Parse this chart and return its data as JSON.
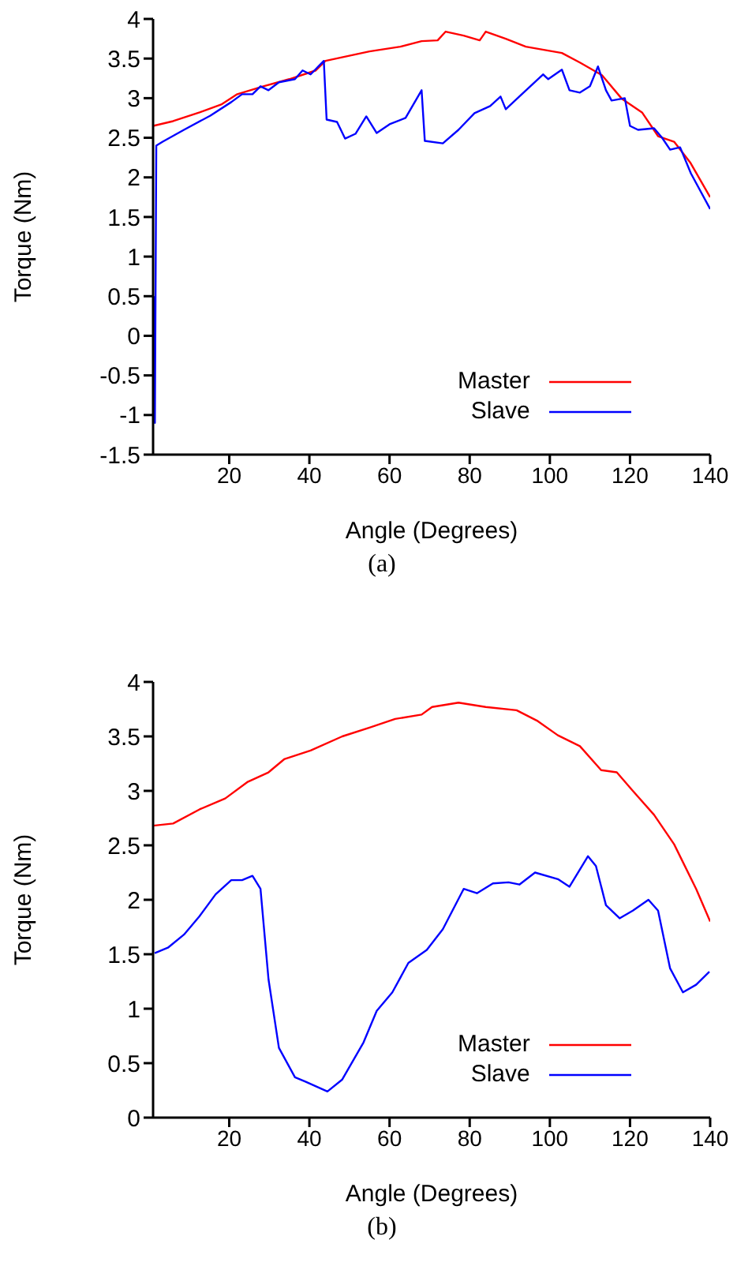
{
  "chart_data": [
    {
      "type": "line",
      "xlabel": "Angle (Degrees)",
      "ylabel": "Torque (Nm)",
      "xlim": [
        1,
        140
      ],
      "xticks": [
        20,
        40,
        60,
        80,
        100,
        120,
        140
      ],
      "ylim": [
        -1.5,
        4
      ],
      "yticks": [
        -1.5,
        -1,
        -0.5,
        0,
        0.5,
        1,
        1.5,
        2,
        2.5,
        3,
        3.5,
        4
      ],
      "legend": "bottom right",
      "annotations": [
        "(a)"
      ],
      "series": [
        {
          "name": "Master",
          "color": "#ff0000",
          "x": [
            1,
            6,
            12.6,
            18,
            22,
            28.5,
            35,
            41.6,
            44,
            55,
            62.7,
            68,
            72,
            74,
            78.5,
            82.5,
            84,
            89,
            94,
            99.6,
            103,
            107.5,
            113,
            118,
            123,
            127,
            131,
            135,
            140
          ],
          "values": [
            2.65,
            2.71,
            2.82,
            2.92,
            3.05,
            3.15,
            3.24,
            3.35,
            3.47,
            3.59,
            3.65,
            3.72,
            3.73,
            3.84,
            3.79,
            3.73,
            3.84,
            3.75,
            3.65,
            3.6,
            3.57,
            3.45,
            3.29,
            2.99,
            2.82,
            2.52,
            2.45,
            2.19,
            1.75
          ]
        },
        {
          "name": "Slave",
          "color": "#0000ff",
          "x": [
            1.2,
            1.45,
            1.8,
            3.4,
            8.7,
            15.3,
            20.5,
            23.2,
            25.8,
            27.8,
            29.8,
            32.4,
            36.4,
            38.3,
            40.3,
            43.6,
            44.3,
            46.9,
            48.9,
            51.5,
            54.2,
            56.8,
            60,
            64,
            68,
            68.8,
            73.3,
            77.2,
            81.2,
            85.1,
            87.7,
            89,
            93,
            98.3,
            99.6,
            103,
            104.9,
            107.5,
            110,
            112,
            114,
            115.4,
            118.7,
            120,
            122,
            126,
            128,
            130,
            132.5,
            135.2,
            140
          ],
          "values": [
            0.5,
            -1.1,
            2.4,
            2.45,
            2.6,
            2.78,
            2.95,
            3.05,
            3.05,
            3.15,
            3.1,
            3.2,
            3.24,
            3.35,
            3.3,
            3.47,
            2.73,
            2.7,
            2.49,
            2.55,
            2.77,
            2.56,
            2.67,
            2.75,
            3.1,
            2.46,
            2.43,
            2.6,
            2.81,
            2.9,
            3.02,
            2.86,
            3.05,
            3.3,
            3.24,
            3.36,
            3.1,
            3.07,
            3.15,
            3.4,
            3.1,
            2.97,
            3.0,
            2.65,
            2.6,
            2.62,
            2.5,
            2.35,
            2.38,
            2.05,
            1.6
          ]
        }
      ]
    },
    {
      "type": "line",
      "xlabel": "Angle (Degrees)",
      "ylabel": "Torque (Nm)",
      "xlim": [
        1,
        140
      ],
      "xticks": [
        20,
        40,
        60,
        80,
        100,
        120,
        140
      ],
      "ylim": [
        0,
        4
      ],
      "yticks": [
        0,
        0.5,
        1,
        1.5,
        2,
        2.5,
        3,
        3.5,
        4
      ],
      "legend": "bottom right",
      "annotations": [
        "(b)"
      ],
      "series": [
        {
          "name": "Master",
          "color": "#ff0000",
          "x": [
            1,
            6,
            12.6,
            19,
            24.5,
            29.8,
            33.7,
            40.3,
            48.2,
            55,
            61.4,
            68,
            70.6,
            77.2,
            84,
            91.7,
            97,
            102,
            107.5,
            112.8,
            116.7,
            120.7,
            126,
            131,
            136.5,
            140
          ],
          "values": [
            2.68,
            2.7,
            2.83,
            2.93,
            3.08,
            3.17,
            3.29,
            3.37,
            3.5,
            3.58,
            3.66,
            3.7,
            3.77,
            3.81,
            3.77,
            3.74,
            3.64,
            3.51,
            3.41,
            3.19,
            3.17,
            3.0,
            2.78,
            2.51,
            2.1,
            1.8
          ]
        },
        {
          "name": "Slave",
          "color": "#0000ff",
          "x": [
            1.4,
            4.7,
            8.7,
            12.6,
            16.6,
            20.5,
            23.2,
            25.8,
            27.8,
            29.8,
            32.4,
            36.4,
            39,
            44.5,
            48.2,
            53.5,
            56.8,
            60.7,
            64.7,
            69.3,
            73.3,
            78.5,
            81.8,
            85.8,
            89.7,
            92.4,
            96.3,
            102,
            104.9,
            109.5,
            111.5,
            114,
            117.4,
            120.7,
            124.6,
            127,
            130,
            133.2,
            136.5,
            139.8
          ],
          "values": [
            1.51,
            1.56,
            1.68,
            1.85,
            2.05,
            2.18,
            2.18,
            2.22,
            2.1,
            1.27,
            0.64,
            0.37,
            0.33,
            0.24,
            0.35,
            0.69,
            0.98,
            1.15,
            1.42,
            1.54,
            1.73,
            2.1,
            2.06,
            2.15,
            2.16,
            2.14,
            2.25,
            2.19,
            2.12,
            2.4,
            2.31,
            1.95,
            1.83,
            1.9,
            2.0,
            1.9,
            1.37,
            1.15,
            1.22,
            1.34
          ]
        }
      ]
    }
  ]
}
